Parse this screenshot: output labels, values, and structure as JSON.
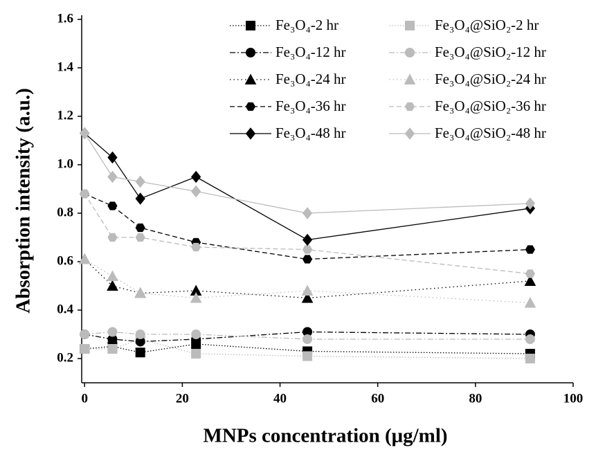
{
  "chart_data": {
    "type": "line",
    "x_label": "MNPs concentration (μg/ml)",
    "y_label": "Absorption intensity (a.u.)",
    "x": [
      0,
      5.7,
      11.4,
      22.8,
      45.6,
      91.2
    ],
    "xlim": [
      -0.6,
      100
    ],
    "xticks": [
      0,
      20,
      40,
      60,
      80,
      100
    ],
    "ylim": [
      0.1,
      1.6
    ],
    "yticks": [
      0.2,
      0.4,
      0.6,
      0.8,
      {
        "value": 1.0,
        "label": "1.0"
      },
      1.2,
      1.4,
      1.6
    ],
    "series": [
      {
        "name": "Fe₃O₄-2 hr",
        "color": "#000000",
        "marker": "square",
        "dash": "1.5 2.5",
        "values": [
          0.24,
          0.25,
          0.225,
          0.26,
          0.23,
          0.22
        ]
      },
      {
        "name": "Fe₃O₄@SiO₂-2 hr",
        "color": "#bbbbbb",
        "marker": "square",
        "dash": "1.5 2.5",
        "values": [
          0.24,
          0.24,
          0.28,
          0.22,
          0.21,
          0.2
        ]
      },
      {
        "name": "Fe₃O₄-12 hr",
        "color": "#000000",
        "marker": "circle",
        "dash": "8 3 2 3",
        "values": [
          0.3,
          0.28,
          0.27,
          0.28,
          0.31,
          0.3
        ]
      },
      {
        "name": "Fe₃O₄@SiO₂-12 hr",
        "color": "#bbbbbb",
        "marker": "circle",
        "dash": "8 3 2 3",
        "values": [
          0.3,
          0.31,
          0.3,
          0.3,
          0.28,
          0.28
        ]
      },
      {
        "name": "Fe₃O₄-24 hr",
        "color": "#000000",
        "marker": "triangle",
        "dash": "1.5 4",
        "values": [
          0.61,
          0.5,
          0.47,
          0.48,
          0.45,
          0.52
        ]
      },
      {
        "name": "Fe₃O₄@SiO₂-24 hr",
        "color": "#bbbbbb",
        "marker": "triangle",
        "dash": "1.5 4",
        "values": [
          0.61,
          0.54,
          0.47,
          0.45,
          0.48,
          0.43
        ]
      },
      {
        "name": "Fe₃O₄-36 hr",
        "color": "#000000",
        "marker": "hexagon",
        "dash": "7 4",
        "values": [
          0.88,
          0.83,
          0.74,
          0.68,
          0.61,
          0.65
        ]
      },
      {
        "name": "Fe₃O₄@SiO₂-36 hr",
        "color": "#bbbbbb",
        "marker": "hexagon",
        "dash": "7 4",
        "values": [
          0.88,
          0.7,
          0.7,
          0.66,
          0.65,
          0.55
        ]
      },
      {
        "name": "Fe₃O₄-48 hr",
        "color": "#000000",
        "marker": "diamond",
        "dash": "none",
        "values": [
          1.13,
          1.03,
          0.86,
          0.95,
          0.69,
          0.82
        ]
      },
      {
        "name": "Fe₃O₄@SiO₂-48 hr",
        "color": "#bbbbbb",
        "marker": "diamond",
        "dash": "none",
        "values": [
          1.13,
          0.95,
          0.93,
          0.89,
          0.8,
          0.84
        ]
      }
    ]
  }
}
